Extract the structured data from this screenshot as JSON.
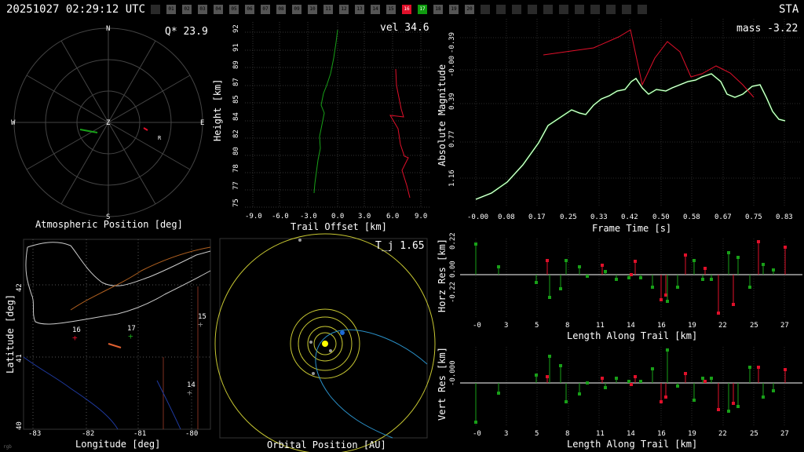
{
  "header": {
    "timestamp": "20251027 02:29:12 UTC",
    "station_code": "STA"
  },
  "stations": [
    {
      "label": "",
      "state": "dim"
    },
    {
      "label": "01",
      "state": "on"
    },
    {
      "label": "02",
      "state": "on"
    },
    {
      "label": "03",
      "state": "on"
    },
    {
      "label": "04",
      "state": "on"
    },
    {
      "label": "05",
      "state": "on"
    },
    {
      "label": "06",
      "state": "on"
    },
    {
      "label": "07",
      "state": "on"
    },
    {
      "label": "08",
      "state": "on"
    },
    {
      "label": "09",
      "state": "on"
    },
    {
      "label": "10",
      "state": "on"
    },
    {
      "label": "11",
      "state": "on"
    },
    {
      "label": "12",
      "state": "on"
    },
    {
      "label": "13",
      "state": "on"
    },
    {
      "label": "14",
      "state": "on"
    },
    {
      "label": "15",
      "state": "on"
    },
    {
      "label": "16",
      "state": "red"
    },
    {
      "label": "17",
      "state": "green"
    },
    {
      "label": "18",
      "state": "on"
    },
    {
      "label": "19",
      "state": "on"
    },
    {
      "label": "20",
      "state": "on"
    },
    {
      "label": "",
      "state": "dim"
    },
    {
      "label": "",
      "state": "dim"
    },
    {
      "label": "",
      "state": "dim"
    },
    {
      "label": "",
      "state": "dim"
    },
    {
      "label": "",
      "state": "dim"
    },
    {
      "label": "",
      "state": "dim"
    },
    {
      "label": "",
      "state": "dim"
    },
    {
      "label": "",
      "state": "dim"
    },
    {
      "label": "",
      "state": "dim"
    },
    {
      "label": "",
      "state": "dim"
    },
    {
      "label": "",
      "state": "dim"
    }
  ],
  "colors": {
    "green": "#18a018",
    "red": "#e0102a",
    "grid": "#444",
    "white": "#ffffff",
    "yellow": "#e6e64a",
    "blue": "#1e6bd6"
  },
  "sky": {
    "value_label": "Q* 23.9",
    "caption": "Atmospheric Position [deg]",
    "dirs": {
      "n": "N",
      "s": "S",
      "e": "E",
      "w": "W",
      "z": "Z"
    },
    "marker": "R"
  },
  "height": {
    "value_label": "vel 34.6",
    "xlabel": "Trail Offset [km]",
    "ylabel": "Height [km]",
    "xticks": [
      "-9.0",
      "-6.0",
      "-3.0",
      "0.0",
      "3.0",
      "6.0",
      "9.0"
    ],
    "yticks": [
      "75",
      "77",
      "78",
      "80",
      "82",
      "84",
      "85",
      "87",
      "89",
      "91",
      "92"
    ]
  },
  "mag": {
    "value_label": "mass -3.22",
    "xlabel": "Frame Time [s]",
    "ylabel": "Absolute Magnitude",
    "xticks": [
      "-0.00",
      "0.08",
      "0.17",
      "0.25",
      "0.33",
      "0.42",
      "0.50",
      "0.58",
      "0.67",
      "0.75",
      "0.83"
    ],
    "yticks": [
      "-0.39",
      "-0.00",
      "0.39",
      "0.77",
      "1.16"
    ]
  },
  "map": {
    "xlabel": "Longitude [deg]",
    "ylabel": "Latitude [deg]",
    "xticks": [
      "-83",
      "-82",
      "-81",
      "-80"
    ],
    "yticks": [
      "42",
      "41",
      "40"
    ],
    "station_labels": [
      "16",
      "17",
      "15",
      "14"
    ]
  },
  "orbit": {
    "value_label": "T_j 1.65",
    "caption": "Orbital Position [AU]"
  },
  "horz": {
    "xlabel": "Length Along Trail [km]",
    "ylabel": "Horz Res [km]",
    "xticks": [
      "-0",
      "3",
      "5",
      "8",
      "11",
      "14",
      "16",
      "19",
      "22",
      "25",
      "27"
    ],
    "yticks": [
      "0.22",
      "0.00",
      "-0.22"
    ]
  },
  "vert": {
    "xlabel": "Length Along Trail [km]",
    "ylabel": "Vert Res [km]",
    "xticks": [
      "-0",
      "3",
      "5",
      "8",
      "11",
      "14",
      "16",
      "19",
      "22",
      "25",
      "27"
    ],
    "yticks": [
      "-0.000"
    ]
  },
  "footer": {
    "tag": "rgb"
  }
}
